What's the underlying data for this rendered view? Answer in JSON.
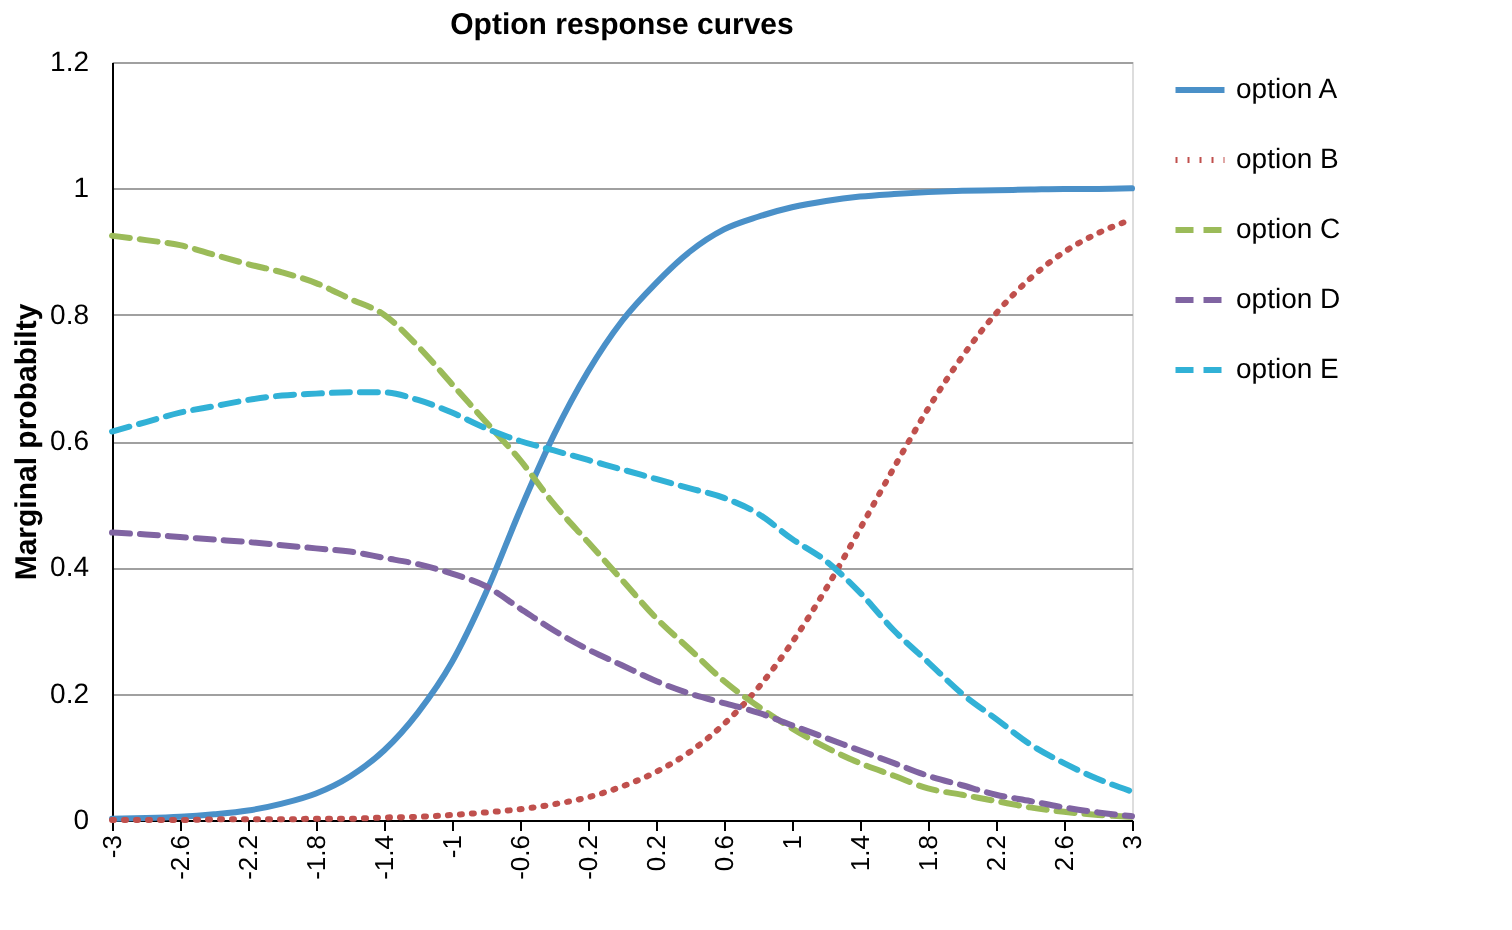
{
  "chart_data": {
    "type": "line",
    "title": "Option response curves",
    "ylabel": "Marginal probabilty",
    "x": [
      -3,
      -2.8,
      -2.6,
      -2.4,
      -2.2,
      -2,
      -1.8,
      -1.6,
      -1.4,
      -1.2,
      -1,
      -0.8,
      -0.6,
      -0.4,
      -0.2,
      0,
      0.2,
      0.4,
      0.6,
      0.8,
      1,
      1.2,
      1.4,
      1.6,
      1.8,
      2,
      2.2,
      2.4,
      2.6,
      2.8,
      3
    ],
    "xlim": [
      -3,
      3
    ],
    "xticks": [
      -3,
      -2.6,
      -2.2,
      -1.8,
      -1.4,
      -1,
      -0.6,
      -0.2,
      0.2,
      0.6,
      1,
      1.4,
      1.8,
      2.2,
      2.6,
      3
    ],
    "ylim": [
      0,
      1.2
    ],
    "yticks": [
      0,
      0.2,
      0.4,
      0.6,
      0.8,
      1,
      1.2
    ],
    "grid": "y",
    "legend": "right",
    "marker": "none",
    "series": [
      {
        "name": "option A",
        "color": "#4a90c8",
        "line_style": "solid",
        "values": [
          0.002,
          0.003,
          0.005,
          0.009,
          0.015,
          0.026,
          0.042,
          0.069,
          0.11,
          0.17,
          0.25,
          0.36,
          0.49,
          0.61,
          0.71,
          0.79,
          0.85,
          0.9,
          0.935,
          0.955,
          0.97,
          0.98,
          0.987,
          0.991,
          0.994,
          0.996,
          0.997,
          0.998,
          0.999,
          0.999,
          1.0
        ]
      },
      {
        "name": "option B",
        "color": "#c0504d",
        "line_style": "dotted",
        "values": [
          0.0,
          0.0,
          0.0,
          0.001,
          0.001,
          0.001,
          0.002,
          0.002,
          0.004,
          0.005,
          0.008,
          0.012,
          0.017,
          0.025,
          0.036,
          0.053,
          0.076,
          0.108,
          0.152,
          0.209,
          0.281,
          0.366,
          0.461,
          0.558,
          0.651,
          0.733,
          0.802,
          0.857,
          0.899,
          0.929,
          0.951
        ]
      },
      {
        "name": "option C",
        "color": "#9bbb59",
        "line_style": "dashed",
        "values": [
          0.925,
          0.918,
          0.91,
          0.895,
          0.88,
          0.867,
          0.85,
          0.825,
          0.8,
          0.75,
          0.69,
          0.63,
          0.57,
          0.5,
          0.44,
          0.38,
          0.32,
          0.27,
          0.22,
          0.18,
          0.145,
          0.115,
          0.09,
          0.07,
          0.05,
          0.04,
          0.03,
          0.02,
          0.013,
          0.008,
          0.005
        ]
      },
      {
        "name": "option D",
        "color": "#8064a2",
        "line_style": "dashed",
        "values": [
          0.455,
          0.452,
          0.448,
          0.444,
          0.44,
          0.435,
          0.43,
          0.425,
          0.415,
          0.405,
          0.39,
          0.37,
          0.335,
          0.3,
          0.27,
          0.245,
          0.22,
          0.2,
          0.185,
          0.17,
          0.15,
          0.13,
          0.11,
          0.09,
          0.07,
          0.055,
          0.04,
          0.03,
          0.02,
          0.012,
          0.006
        ]
      },
      {
        "name": "option E",
        "color": "#31b1d6",
        "line_style": "dashed",
        "values": [
          0.615,
          0.63,
          0.645,
          0.655,
          0.665,
          0.672,
          0.675,
          0.677,
          0.677,
          0.665,
          0.645,
          0.62,
          0.6,
          0.585,
          0.57,
          0.555,
          0.54,
          0.525,
          0.51,
          0.485,
          0.445,
          0.41,
          0.36,
          0.3,
          0.25,
          0.2,
          0.16,
          0.12,
          0.09,
          0.065,
          0.045
        ]
      }
    ]
  }
}
